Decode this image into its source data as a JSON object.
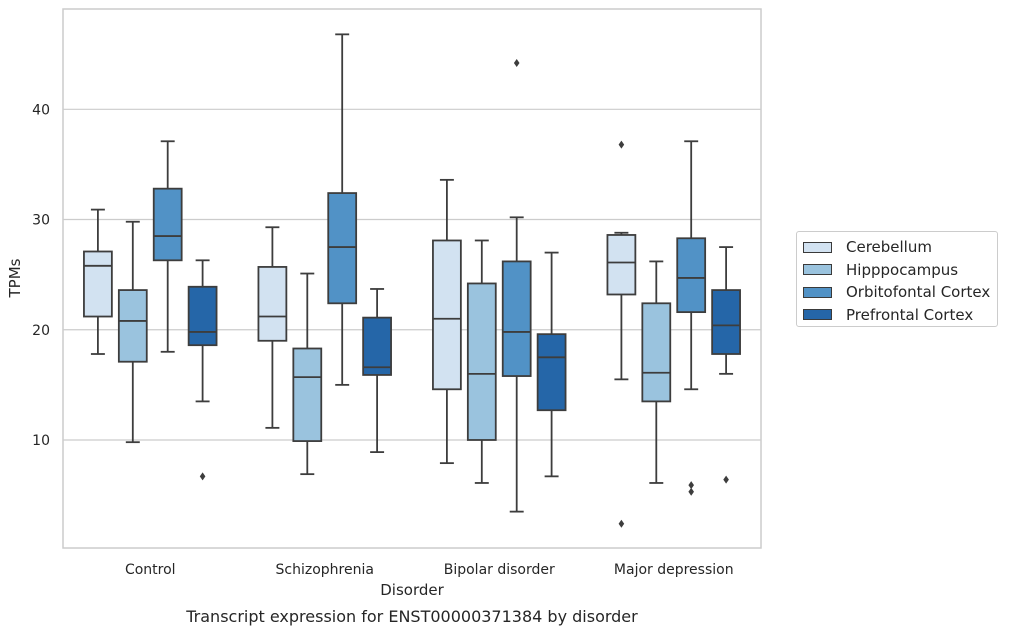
{
  "chart_data": {
    "type": "box",
    "title": "Transcript expression for ENST00000371384 by disorder",
    "xlabel": "Disorder",
    "ylabel": "TPMs",
    "ylim": [
      0.2,
      49.1
    ],
    "yticks": [
      10,
      20,
      30,
      40
    ],
    "grid": "horizontal",
    "legend_position": "right",
    "categories": [
      "Control",
      "Schizophrenia",
      "Bipolar disorder",
      "Major depression"
    ],
    "series": [
      {
        "name": "Cerebellum",
        "color": "#d2e2f1",
        "boxes": [
          {
            "whislo": 17.8,
            "q1": 21.2,
            "med": 25.8,
            "q3": 27.1,
            "whishi": 30.9,
            "fliers": []
          },
          {
            "whislo": 11.1,
            "q1": 19.0,
            "med": 21.2,
            "q3": 25.7,
            "whishi": 29.3,
            "fliers": []
          },
          {
            "whislo": 7.9,
            "q1": 14.6,
            "med": 21.0,
            "q3": 28.1,
            "whishi": 33.6,
            "fliers": []
          },
          {
            "whislo": 15.5,
            "q1": 23.2,
            "med": 26.1,
            "q3": 28.6,
            "whishi": 28.8,
            "fliers": [
              36.8,
              2.4
            ]
          }
        ]
      },
      {
        "name": "Hipppocampus",
        "color": "#9ac3de",
        "boxes": [
          {
            "whislo": 9.8,
            "q1": 17.1,
            "med": 20.8,
            "q3": 23.6,
            "whishi": 29.8,
            "fliers": []
          },
          {
            "whislo": 6.9,
            "q1": 9.9,
            "med": 15.7,
            "q3": 18.3,
            "whishi": 25.1,
            "fliers": []
          },
          {
            "whislo": 6.1,
            "q1": 10.0,
            "med": 16.0,
            "q3": 24.2,
            "whishi": 28.1,
            "fliers": []
          },
          {
            "whislo": 6.1,
            "q1": 13.5,
            "med": 16.1,
            "q3": 22.4,
            "whishi": 26.2,
            "fliers": []
          }
        ]
      },
      {
        "name": "Orbitofontal Cortex",
        "color": "#5192c6",
        "boxes": [
          {
            "whislo": 18.0,
            "q1": 26.3,
            "med": 28.5,
            "q3": 32.8,
            "whishi": 37.1,
            "fliers": []
          },
          {
            "whislo": 15.0,
            "q1": 22.4,
            "med": 27.5,
            "q3": 32.4,
            "whishi": 46.8,
            "fliers": []
          },
          {
            "whislo": 3.5,
            "q1": 15.8,
            "med": 19.8,
            "q3": 26.2,
            "whishi": 30.2,
            "fliers": [
              44.2
            ]
          },
          {
            "whislo": 14.6,
            "q1": 21.6,
            "med": 24.7,
            "q3": 28.3,
            "whishi": 37.1,
            "fliers": [
              5.9,
              5.3
            ]
          }
        ]
      },
      {
        "name": "Prefrontal Cortex",
        "color": "#2566a8",
        "boxes": [
          {
            "whislo": 13.5,
            "q1": 18.6,
            "med": 19.8,
            "q3": 23.9,
            "whishi": 26.3,
            "fliers": [
              6.7
            ]
          },
          {
            "whislo": 8.9,
            "q1": 15.9,
            "med": 16.6,
            "q3": 21.1,
            "whishi": 23.7,
            "fliers": []
          },
          {
            "whislo": 6.7,
            "q1": 12.7,
            "med": 17.5,
            "q3": 19.6,
            "whishi": 27.0,
            "fliers": []
          },
          {
            "whislo": 16.0,
            "q1": 17.8,
            "med": 20.4,
            "q3": 23.6,
            "whishi": 27.5,
            "fliers": [
              6.4
            ]
          }
        ]
      }
    ]
  }
}
